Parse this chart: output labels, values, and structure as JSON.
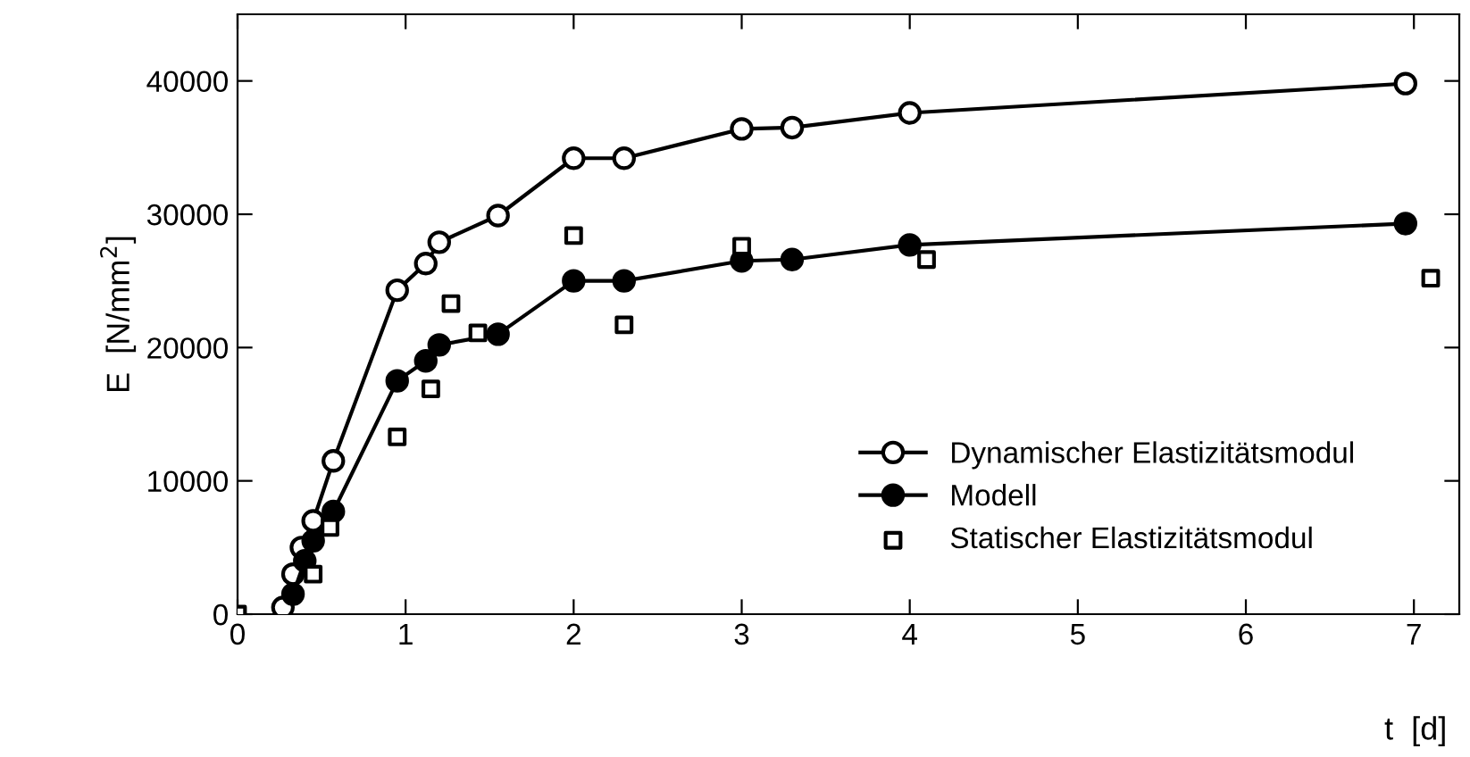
{
  "chart_data": {
    "type": "line",
    "xlabel": "t  [d]",
    "ylabel": "E  [N/mm$^{2}$]",
    "xlim": [
      0,
      7.27
    ],
    "ylim": [
      0,
      45000
    ],
    "xticks": [
      0,
      1,
      2,
      3,
      4,
      5,
      6,
      7
    ],
    "yticks": [
      0,
      10000,
      20000,
      30000,
      40000
    ],
    "grid": false,
    "legend": "bottom right",
    "series": [
      {
        "name": "Dynamischer Elastizitätsmodul",
        "color": "#000000",
        "marker": "circle",
        "x": [
          0.27,
          0.33,
          0.38,
          0.45,
          0.57,
          0.95,
          1.12,
          1.2,
          1.55,
          2.0,
          2.3,
          3.0,
          3.3,
          4.0,
          6.95
        ],
        "values": [
          500,
          3000,
          5000,
          7000,
          11500,
          24300,
          26300,
          27900,
          29900,
          34200,
          34200,
          36400,
          36500,
          37600,
          39800
        ]
      },
      {
        "name": "Modell",
        "color": "#000000",
        "marker": "circle",
        "x": [
          0.33,
          0.4,
          0.45,
          0.57,
          0.95,
          1.12,
          1.2,
          1.55,
          2.0,
          2.3,
          3.0,
          3.3,
          4.0,
          6.95
        ],
        "values": [
          1500,
          4000,
          5500,
          7700,
          17500,
          19000,
          20200,
          21000,
          25000,
          25000,
          26500,
          26600,
          27700,
          29300
        ]
      },
      {
        "name": "Statischer Elastizitätsmodul",
        "type": "scatter",
        "color": "#000000",
        "marker": "square",
        "x": [
          0,
          0.45,
          0.55,
          0.95,
          1.15,
          1.27,
          1.43,
          2.0,
          2.3,
          3.0,
          4.1,
          7.1
        ],
        "values": [
          0,
          3000,
          6500,
          13300,
          16900,
          23300,
          21100,
          28400,
          21700,
          27600,
          26600,
          25200
        ]
      }
    ]
  }
}
